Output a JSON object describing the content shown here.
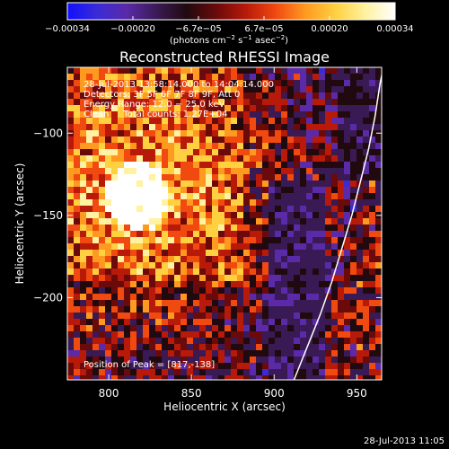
{
  "colorbar": {
    "ticks": [
      "−0.00034",
      "−0.00020",
      "−6.7e−05",
      "6.7e−05",
      "0.00020",
      "0.00034"
    ],
    "unit_prefix": "(photons cm",
    "unit_sup1": "−2",
    "unit_mid": " s",
    "unit_sup2": "−1",
    "unit_mid2": " asec",
    "unit_sup3": "−2",
    "unit_suffix": ")",
    "colors": [
      "#1010ff",
      "#3b2bd6",
      "#5a2aa8",
      "#3a1a55",
      "#200a10",
      "#6a0a0a",
      "#b81a0a",
      "#f04a10",
      "#ff9a20",
      "#ffd040",
      "#fff2a0",
      "#ffffff"
    ]
  },
  "chart_data": {
    "type": "heatmap",
    "title": "Reconstructed RHESSI Image",
    "xlabel": "Heliocentric X (arcsec)",
    "ylabel": "Heliocentric Y (arcsec)",
    "xlim": [
      775,
      965
    ],
    "ylim": [
      -250,
      -60
    ],
    "xticks": [
      800,
      850,
      900,
      950
    ],
    "yticks": [
      -100,
      -150,
      -200
    ],
    "info_lines": [
      "28-Jul-2013 13:58:14.000 to 14:04:14.000",
      "Detectors: 3F 5F 6F 7F 8F 9F, Att 0",
      "Energy Range: 12.0 − 25.0 keV",
      "Clean     Total counts: 1.27E+04"
    ],
    "peak_text": "Position of Peak = [817,-138]",
    "peak": [
      817,
      -138
    ],
    "limb_curve": [
      [
        912,
        -250
      ],
      [
        920,
        -230
      ],
      [
        928,
        -210
      ],
      [
        935,
        -190
      ],
      [
        941,
        -170
      ],
      [
        947,
        -150
      ],
      [
        952,
        -130
      ],
      [
        957,
        -110
      ],
      [
        961,
        -90
      ],
      [
        964,
        -70
      ],
      [
        966,
        -60
      ]
    ]
  },
  "timestamp": "28-Jul-2013 11:05"
}
